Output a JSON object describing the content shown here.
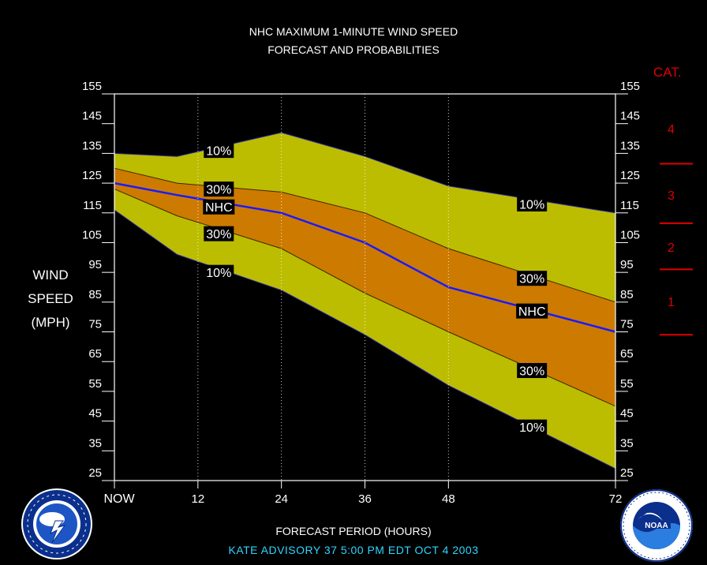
{
  "title_line1": "NHC MAXIMUM 1-MINUTE WIND SPEED",
  "title_line2": "FORECAST AND PROBABILITIES",
  "ylabel_lines": [
    "WIND",
    "SPEED",
    "(MPH)"
  ],
  "xlabel": "FORECAST PERIOD (HOURS)",
  "advisory": "KATE   ADVISORY  37 5:00  PM  EDT  OCT  4  2003",
  "category_header": "CAT.",
  "categories": [
    {
      "label": "4",
      "from": 131,
      "to": 155
    },
    {
      "label": "3",
      "from": 111,
      "to": 131
    },
    {
      "label": "2",
      "from": 96,
      "to": 111
    },
    {
      "label": "1",
      "from": 74,
      "to": 96
    }
  ],
  "colors": {
    "background": "#000000",
    "band_10": "#bcbd00",
    "band_30": "#cd7a00",
    "forecast_line": "#1a1aff",
    "category": "#e00000",
    "advisory_text": "#2fd6ff"
  },
  "chart_data": {
    "type": "area",
    "title": "NHC MAXIMUM 1-MINUTE WIND SPEED FORECAST AND PROBABILITIES",
    "xlabel": "FORECAST PERIOD (HOURS)",
    "ylabel": "WIND SPEED (MPH)",
    "xlim": [
      0,
      72
    ],
    "ylim": [
      25,
      155
    ],
    "x_ticks": [
      {
        "value": 0,
        "label": "NOW"
      },
      {
        "value": 12,
        "label": "12"
      },
      {
        "value": 24,
        "label": "24"
      },
      {
        "value": 36,
        "label": "36"
      },
      {
        "value": 48,
        "label": "48"
      },
      {
        "value": 72,
        "label": "72"
      }
    ],
    "y_ticks": [
      25,
      35,
      45,
      55,
      65,
      75,
      85,
      95,
      105,
      115,
      125,
      135,
      145,
      155
    ],
    "x": [
      0,
      9,
      24,
      36,
      48,
      72
    ],
    "series": [
      {
        "name": "10%",
        "values": [
          135,
          134,
          142,
          134,
          124,
          115
        ]
      },
      {
        "name": "30%",
        "values": [
          130,
          125,
          122,
          115,
          103,
          85
        ]
      },
      {
        "name": "NHC",
        "values": [
          125,
          121,
          115,
          105,
          90,
          75
        ]
      },
      {
        "name": "30%",
        "values": [
          123,
          114,
          103,
          88,
          75,
          50
        ]
      },
      {
        "name": "10%",
        "values": [
          116,
          101,
          89,
          74,
          57,
          29
        ]
      }
    ],
    "band_labels": [
      {
        "text": "10%",
        "x": 15,
        "y": 136
      },
      {
        "text": "30%",
        "x": 15,
        "y": 123
      },
      {
        "text": "NHC",
        "x": 15,
        "y": 117
      },
      {
        "text": "30%",
        "x": 15,
        "y": 108
      },
      {
        "text": "10%",
        "x": 15,
        "y": 95
      },
      {
        "text": "10%",
        "x": 60,
        "y": 118
      },
      {
        "text": "30%",
        "x": 60,
        "y": 93
      },
      {
        "text": "NHC",
        "x": 60,
        "y": 82
      },
      {
        "text": "30%",
        "x": 60,
        "y": 62
      },
      {
        "text": "10%",
        "x": 60,
        "y": 43
      }
    ],
    "grid": "vertical dotted lines at forecast hours"
  }
}
